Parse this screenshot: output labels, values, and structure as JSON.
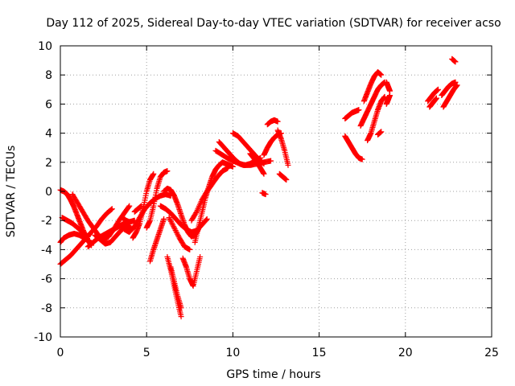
{
  "chart_data": {
    "type": "scatter",
    "title": "Day 112 of 2025, Sidereal Day-to-day VTEC variation (SDTVAR) for receiver acso",
    "xlabel": "GPS time / hours",
    "ylabel": "SDTVAR / TECUs",
    "xlim": [
      0,
      25
    ],
    "ylim": [
      -10,
      10
    ],
    "xticks": [
      "0",
      "5",
      "10",
      "15",
      "20",
      "25"
    ],
    "yticks": [
      "-10",
      "-8",
      "-6",
      "-4",
      "-2",
      "0",
      "2",
      "4",
      "6",
      "8",
      "10"
    ],
    "grid": true,
    "marker": "+",
    "marker_color": "#ff0000",
    "segments": [
      {
        "x": [
          0.0,
          0.3,
          0.6,
          0.9,
          1.2,
          1.5,
          1.8,
          2.1,
          2.4,
          2.7,
          3.0
        ],
        "y": [
          -5.0,
          -4.7,
          -4.4,
          -4.0,
          -3.6,
          -3.2,
          -2.8,
          -2.4,
          -1.9,
          -1.5,
          -1.2
        ]
      },
      {
        "x": [
          0.0,
          0.2,
          0.4,
          0.6,
          0.8,
          1.0,
          1.2,
          1.4,
          1.6,
          1.8
        ],
        "y": [
          0.1,
          0.0,
          -0.2,
          -0.6,
          -1.1,
          -1.7,
          -2.3,
          -2.9,
          -3.4,
          -3.7
        ]
      },
      {
        "x": [
          0.1,
          0.4,
          0.7,
          1.0,
          1.3,
          1.6
        ],
        "y": [
          -1.8,
          -2.0,
          -2.2,
          -2.5,
          -2.8,
          -3.1
        ]
      },
      {
        "x": [
          0.0,
          0.2,
          0.5,
          0.8,
          1.1,
          1.4,
          1.7
        ],
        "y": [
          -3.5,
          -3.2,
          -3.0,
          -2.9,
          -3.0,
          -3.2,
          -3.4
        ]
      },
      {
        "x": [
          0.7,
          1.0,
          1.3,
          1.6,
          1.9,
          2.2,
          2.5,
          2.8,
          3.1,
          3.4,
          3.7,
          4.0
        ],
        "y": [
          -0.2,
          -0.8,
          -1.4,
          -2.0,
          -2.5,
          -3.0,
          -3.3,
          -3.1,
          -2.6,
          -2.0,
          -1.5,
          -1.0
        ]
      },
      {
        "x": [
          1.6,
          1.9,
          2.2,
          2.5,
          2.8,
          3.1,
          3.4,
          3.7,
          4.0,
          4.3
        ],
        "y": [
          -3.8,
          -3.5,
          -3.2,
          -3.0,
          -2.8,
          -2.6,
          -2.4,
          -2.2,
          -2.1,
          -2.0
        ]
      },
      {
        "x": [
          2.0,
          2.3,
          2.6,
          2.9,
          3.2,
          3.5,
          3.8,
          4.1
        ],
        "y": [
          -3.0,
          -3.3,
          -3.6,
          -3.5,
          -3.1,
          -2.7,
          -2.4,
          -2.5
        ]
      },
      {
        "x": [
          3.7,
          4.0,
          4.3,
          4.6,
          4.9,
          5.2,
          5.5,
          5.8,
          6.1,
          6.4
        ],
        "y": [
          -2.6,
          -2.8,
          -2.4,
          -1.8,
          -1.2,
          -0.8,
          -0.5,
          -0.3,
          -0.2,
          -0.3
        ]
      },
      {
        "x": [
          4.2,
          4.4,
          4.6,
          4.8,
          5.0,
          5.2,
          5.4
        ],
        "y": [
          -3.2,
          -2.8,
          -2.2,
          -1.2,
          0.0,
          0.8,
          1.2
        ]
      },
      {
        "x": [
          5.0,
          5.2,
          5.4,
          5.6,
          5.8,
          6.0,
          6.2
        ],
        "y": [
          -2.5,
          -2.0,
          -1.0,
          0.2,
          1.0,
          1.3,
          1.4
        ]
      },
      {
        "x": [
          5.2,
          5.4,
          5.6,
          5.8,
          6.0
        ],
        "y": [
          -4.8,
          -4.0,
          -3.3,
          -2.6,
          -1.9
        ]
      },
      {
        "x": [
          6.0,
          6.2,
          6.4,
          6.6,
          6.8,
          7.0,
          7.2,
          7.4,
          7.6,
          7.8,
          8.0
        ],
        "y": [
          0.0,
          0.2,
          0.1,
          -0.3,
          -0.9,
          -1.6,
          -2.3,
          -2.8,
          -3.1,
          -3.0,
          -2.6
        ]
      },
      {
        "x": [
          5.8,
          6.1,
          6.4,
          6.7,
          7.0,
          7.3,
          7.6,
          7.9,
          8.2,
          8.5
        ],
        "y": [
          -1.0,
          -1.2,
          -1.5,
          -1.9,
          -2.3,
          -2.6,
          -2.8,
          -2.7,
          -2.3,
          -1.9
        ]
      },
      {
        "x": [
          6.3,
          6.6,
          6.9,
          7.2,
          7.5
        ],
        "y": [
          -1.8,
          -2.5,
          -3.2,
          -3.8,
          -4.0
        ]
      },
      {
        "x": [
          6.2,
          6.4,
          6.6,
          6.8,
          7.0
        ],
        "y": [
          -4.5,
          -5.4,
          -6.5,
          -7.6,
          -8.6
        ]
      },
      {
        "x": [
          6.4,
          6.6,
          6.8,
          7.0
        ],
        "y": [
          -5.2,
          -6.2,
          -7.2,
          -8.0
        ]
      },
      {
        "x": [
          7.1,
          7.3,
          7.5,
          7.7,
          7.9,
          8.1
        ],
        "y": [
          -4.6,
          -5.2,
          -6.0,
          -6.5,
          -5.5,
          -4.5
        ]
      },
      {
        "x": [
          7.8,
          8.0,
          8.2,
          8.4,
          8.6,
          8.8,
          9.0,
          9.2,
          9.4,
          9.6,
          9.8,
          10.0
        ],
        "y": [
          -3.5,
          -2.5,
          -1.5,
          -0.5,
          0.3,
          1.0,
          1.5,
          1.8,
          2.0,
          1.9,
          1.8,
          1.7
        ]
      },
      {
        "x": [
          7.6,
          7.9,
          8.2,
          8.5,
          8.8,
          9.1,
          9.4,
          9.7
        ],
        "y": [
          -2.0,
          -1.4,
          -0.6,
          0.0,
          0.5,
          1.0,
          1.4,
          1.6
        ]
      },
      {
        "x": [
          9.0,
          9.4,
          9.8,
          10.2,
          10.6,
          11.0,
          11.4,
          11.8,
          12.2
        ],
        "y": [
          2.8,
          2.5,
          2.2,
          2.0,
          1.8,
          1.8,
          1.9,
          2.0,
          2.1
        ]
      },
      {
        "x": [
          9.2,
          9.5,
          9.8,
          10.1,
          10.4,
          10.7,
          11.0,
          11.3,
          11.6
        ],
        "y": [
          3.4,
          3.0,
          2.6,
          2.2,
          1.9,
          1.8,
          1.9,
          2.1,
          2.3
        ]
      },
      {
        "x": [
          10.0,
          10.3,
          10.6,
          10.9,
          11.2,
          11.5,
          11.8
        ],
        "y": [
          4.0,
          3.8,
          3.4,
          3.0,
          2.6,
          2.2,
          1.9
        ]
      },
      {
        "x": [
          11.0,
          11.2,
          11.4,
          11.6,
          11.8
        ],
        "y": [
          2.6,
          2.3,
          2.0,
          1.6,
          1.2
        ]
      },
      {
        "x": [
          11.8,
          12.0,
          12.2,
          12.4,
          12.6,
          12.8
        ],
        "y": [
          2.5,
          3.0,
          3.4,
          3.7,
          3.9,
          4.0
        ]
      },
      {
        "x": [
          12.0,
          12.2,
          12.4,
          12.6
        ],
        "y": [
          4.6,
          4.8,
          4.9,
          4.8
        ]
      },
      {
        "x": [
          12.6,
          12.8,
          13.0,
          13.2
        ],
        "y": [
          4.2,
          3.6,
          2.8,
          1.8
        ]
      },
      {
        "x": [
          12.7,
          12.9,
          13.1
        ],
        "y": [
          1.2,
          1.0,
          0.8
        ]
      },
      {
        "x": [
          11.7,
          11.9
        ],
        "y": [
          -0.1,
          -0.2
        ]
      },
      {
        "x": [
          16.5,
          16.7,
          16.9,
          17.1,
          17.3,
          17.5
        ],
        "y": [
          3.8,
          3.4,
          3.0,
          2.6,
          2.3,
          2.2
        ]
      },
      {
        "x": [
          16.5,
          16.7,
          16.9,
          17.1,
          17.3
        ],
        "y": [
          5.0,
          5.2,
          5.4,
          5.5,
          5.6
        ]
      },
      {
        "x": [
          17.4,
          17.6,
          17.8,
          18.0,
          18.2,
          18.4,
          18.6,
          18.8
        ],
        "y": [
          4.5,
          5.0,
          5.5,
          6.0,
          6.5,
          7.0,
          7.3,
          7.5
        ]
      },
      {
        "x": [
          17.6,
          17.8,
          18.0,
          18.2,
          18.4,
          18.6
        ],
        "y": [
          6.2,
          6.8,
          7.4,
          7.9,
          8.2,
          8.0
        ]
      },
      {
        "x": [
          17.8,
          18.0,
          18.2,
          18.4,
          18.6,
          18.8
        ],
        "y": [
          3.5,
          4.0,
          4.8,
          5.6,
          6.2,
          6.5
        ]
      },
      {
        "x": [
          18.4,
          18.6
        ],
        "y": [
          3.9,
          4.1
        ]
      },
      {
        "x": [
          18.9,
          19.0,
          19.1
        ],
        "y": [
          7.5,
          7.2,
          6.9
        ]
      },
      {
        "x": [
          18.9,
          19.0,
          19.1
        ],
        "y": [
          6.0,
          6.3,
          6.6
        ]
      },
      {
        "x": [
          21.3,
          21.5,
          21.7,
          21.9
        ],
        "y": [
          6.2,
          6.5,
          6.8,
          7.0
        ]
      },
      {
        "x": [
          21.4,
          21.6,
          21.8
        ],
        "y": [
          5.8,
          6.1,
          6.4
        ]
      },
      {
        "x": [
          22.1,
          22.3,
          22.5,
          22.7,
          22.9
        ],
        "y": [
          6.6,
          6.9,
          7.2,
          7.4,
          7.5
        ]
      },
      {
        "x": [
          22.2,
          22.4,
          22.6,
          22.8,
          23.0
        ],
        "y": [
          5.8,
          6.2,
          6.6,
          7.0,
          7.3
        ]
      },
      {
        "x": [
          22.7,
          22.9
        ],
        "y": [
          9.1,
          8.9
        ]
      },
      {
        "x": [
          4.3,
          4.5,
          4.7
        ],
        "y": [
          -1.4,
          -1.2,
          -1.0
        ]
      },
      {
        "x": [
          3.6,
          3.8,
          4.0
        ],
        "y": [
          -1.8,
          -2.0,
          -2.1
        ]
      }
    ]
  }
}
